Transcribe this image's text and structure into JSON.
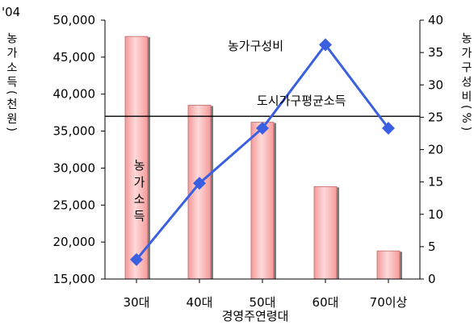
{
  "chart_data": {
    "type": "bar",
    "categories": [
      "30대",
      "40대",
      "50대",
      "60대",
      "70이상"
    ],
    "xlabel": "경영주연령대",
    "year_label": "'04",
    "y_left": {
      "label": "농가소득(천원)",
      "ylim": [
        15000,
        50000
      ],
      "ticks": [
        "15,000",
        "20,000",
        "25,000",
        "30,000",
        "35,000",
        "40,000",
        "45,000",
        "50,000"
      ],
      "tick_values": [
        15000,
        20000,
        25000,
        30000,
        35000,
        40000,
        45000,
        50000
      ]
    },
    "y_right": {
      "label": "농가구성비(%)",
      "ylim": [
        0,
        40
      ],
      "ticks": [
        "0",
        "5",
        "10",
        "15",
        "20",
        "25",
        "30",
        "35",
        "40"
      ],
      "tick_values": [
        0,
        5,
        10,
        15,
        20,
        25,
        30,
        35,
        40
      ]
    },
    "series": [
      {
        "name": "농가소득",
        "type": "bar",
        "axis": "left",
        "values": [
          47800,
          38500,
          36200,
          27500,
          18800
        ],
        "color": "#ffb8b8"
      },
      {
        "name": "농가구성비",
        "type": "line",
        "axis": "right",
        "values": [
          3.0,
          14.8,
          23.3,
          36.2,
          23.3
        ],
        "color": "#3a5fe0"
      }
    ],
    "reference_line": {
      "label": "도시가구평균소득",
      "axis": "left",
      "value": 37000
    },
    "annotations": {
      "bar_label": "농가소득",
      "line_label": "농가구성비",
      "reference_label": "도시가구평균소득"
    },
    "grid": false,
    "legend": "none"
  }
}
